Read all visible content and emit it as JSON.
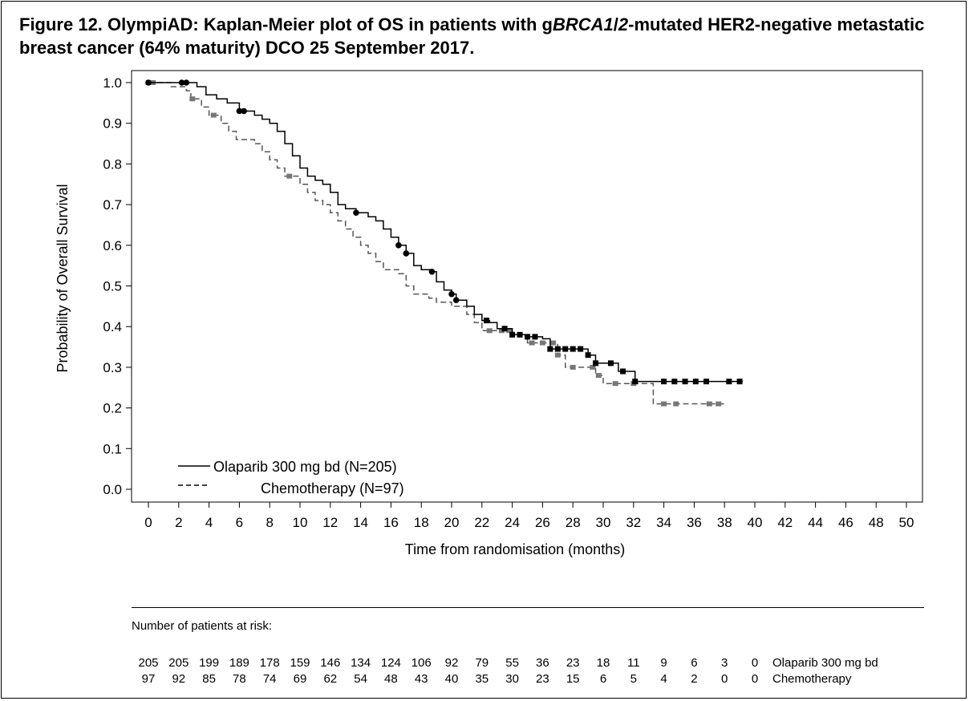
{
  "figure": {
    "title_part1": "Figure 12. OlympiAD: Kaplan-Meier plot of OS in patients with g",
    "title_italic": "BRCA1",
    "title_part2": "/",
    "title_italic2": "2",
    "title_part3": "-mutated HER2-negative metastatic breast cancer (64% maturity) DCO 25 September 2017."
  },
  "chart_data": {
    "type": "line",
    "title": "",
    "xlabel": "Time from randomisation (months)",
    "ylabel": "Probability of Overall Survival",
    "xlim": [
      0,
      50
    ],
    "ylim": [
      0,
      1
    ],
    "x_ticks": [
      0,
      2,
      4,
      6,
      8,
      10,
      12,
      14,
      16,
      18,
      20,
      22,
      24,
      26,
      28,
      30,
      32,
      34,
      36,
      38,
      40,
      42,
      44,
      46,
      48,
      50
    ],
    "y_ticks": [
      "0.0",
      "0.1",
      "0.2",
      "0.3",
      "0.4",
      "0.5",
      "0.6",
      "0.7",
      "0.8",
      "0.9",
      "1.0"
    ],
    "grid": false,
    "legend_position": "bottom-left",
    "series": [
      {
        "name": "Olaparib 300 mg bd (N=205)",
        "style": "solid",
        "color": "#000000",
        "points": [
          [
            0,
            1.0
          ],
          [
            2.5,
            1.0
          ],
          [
            3.2,
            0.99
          ],
          [
            3.8,
            0.97
          ],
          [
            4.5,
            0.96
          ],
          [
            5.2,
            0.95
          ],
          [
            6.0,
            0.93
          ],
          [
            6.5,
            0.93
          ],
          [
            7.0,
            0.92
          ],
          [
            7.5,
            0.91
          ],
          [
            8.0,
            0.9
          ],
          [
            8.5,
            0.88
          ],
          [
            9.0,
            0.85
          ],
          [
            9.5,
            0.82
          ],
          [
            10.0,
            0.79
          ],
          [
            10.5,
            0.77
          ],
          [
            11.0,
            0.76
          ],
          [
            11.5,
            0.75
          ],
          [
            12.0,
            0.73
          ],
          [
            12.5,
            0.7
          ],
          [
            13.0,
            0.69
          ],
          [
            13.7,
            0.68
          ],
          [
            14.0,
            0.68
          ],
          [
            14.5,
            0.67
          ],
          [
            15.0,
            0.66
          ],
          [
            15.5,
            0.64
          ],
          [
            16.0,
            0.62
          ],
          [
            16.5,
            0.6
          ],
          [
            17.0,
            0.58
          ],
          [
            17.5,
            0.55
          ],
          [
            18.0,
            0.54
          ],
          [
            18.7,
            0.535
          ],
          [
            19.0,
            0.51
          ],
          [
            19.5,
            0.49
          ],
          [
            20.0,
            0.48
          ],
          [
            20.3,
            0.465
          ],
          [
            21.0,
            0.45
          ],
          [
            21.5,
            0.43
          ],
          [
            22.0,
            0.415
          ],
          [
            22.5,
            0.41
          ],
          [
            23.0,
            0.395
          ],
          [
            24.0,
            0.38
          ],
          [
            25.0,
            0.375
          ],
          [
            26.0,
            0.37
          ],
          [
            26.5,
            0.345
          ],
          [
            28.5,
            0.345
          ],
          [
            29.0,
            0.33
          ],
          [
            29.5,
            0.31
          ],
          [
            30.5,
            0.31
          ],
          [
            31.0,
            0.29
          ],
          [
            32.0,
            0.29
          ],
          [
            32.1,
            0.265
          ],
          [
            39.2,
            0.265
          ]
        ],
        "censored_x": [
          0,
          2.2,
          2.5,
          6.0,
          6.3,
          13.7,
          16.5,
          17.0,
          18.7,
          20.0,
          20.3,
          22.3,
          23.5,
          24.0,
          24.5,
          25.0,
          25.5,
          26.5,
          27.0,
          27.5,
          28.0,
          28.5,
          29.0,
          29.5,
          30.5,
          31.3,
          32.1,
          34.0,
          34.7,
          35.4,
          36.1,
          36.8,
          38.3,
          39.0
        ]
      },
      {
        "name": "Chemotherapy (N=97)",
        "style": "dashed",
        "color": "#555555",
        "points": [
          [
            0,
            1.0
          ],
          [
            1.5,
            0.99
          ],
          [
            2.5,
            0.98
          ],
          [
            2.8,
            0.96
          ],
          [
            3.5,
            0.94
          ],
          [
            4.0,
            0.92
          ],
          [
            4.8,
            0.9
          ],
          [
            5.3,
            0.88
          ],
          [
            5.8,
            0.86
          ],
          [
            7.0,
            0.85
          ],
          [
            7.5,
            0.83
          ],
          [
            8.0,
            0.81
          ],
          [
            8.5,
            0.79
          ],
          [
            9.0,
            0.77
          ],
          [
            10.0,
            0.75
          ],
          [
            10.5,
            0.73
          ],
          [
            11.0,
            0.71
          ],
          [
            11.5,
            0.7
          ],
          [
            12.0,
            0.68
          ],
          [
            12.5,
            0.66
          ],
          [
            13.0,
            0.64
          ],
          [
            13.5,
            0.62
          ],
          [
            14.0,
            0.6
          ],
          [
            14.5,
            0.58
          ],
          [
            15.0,
            0.56
          ],
          [
            15.5,
            0.54
          ],
          [
            16.5,
            0.53
          ],
          [
            17.0,
            0.5
          ],
          [
            17.5,
            0.48
          ],
          [
            18.5,
            0.47
          ],
          [
            19.0,
            0.46
          ],
          [
            20.0,
            0.45
          ],
          [
            21.0,
            0.43
          ],
          [
            21.5,
            0.41
          ],
          [
            22.0,
            0.39
          ],
          [
            24.0,
            0.38
          ],
          [
            25.0,
            0.36
          ],
          [
            27.0,
            0.33
          ],
          [
            27.5,
            0.3
          ],
          [
            29.0,
            0.3
          ],
          [
            29.5,
            0.28
          ],
          [
            30.0,
            0.26
          ],
          [
            32.0,
            0.26
          ],
          [
            33.3,
            0.26
          ],
          [
            33.3,
            0.21
          ],
          [
            38.0,
            0.21
          ]
        ],
        "censored_x": [
          0,
          0.3,
          2.9,
          4.3,
          9.3,
          22.5,
          23.3,
          23.8,
          25.3,
          26.0,
          26.7,
          27.0,
          28.0,
          29.3,
          29.7,
          30.8,
          32.0,
          34.0,
          34.8,
          37.0,
          37.6
        ]
      }
    ],
    "risk_table": {
      "title": "Number of patients at risk:",
      "times": [
        0,
        2,
        4,
        6,
        8,
        10,
        12,
        14,
        16,
        18,
        20,
        22,
        24,
        26,
        28,
        30,
        32,
        34,
        36,
        38,
        40
      ],
      "rows": [
        {
          "label": "Olaparib 300 mg bd",
          "values": [
            "205",
            "205",
            "199",
            "189",
            "178",
            "159",
            "146",
            "134",
            "124",
            "106",
            "92",
            "79",
            "55",
            "36",
            "23",
            "18",
            "11",
            "9",
            "6",
            "3",
            "0"
          ]
        },
        {
          "label": "Chemotherapy",
          "values": [
            "97",
            "92",
            "85",
            "78",
            "74",
            "69",
            "62",
            "54",
            "48",
            "43",
            "40",
            "35",
            "30",
            "23",
            "15",
            "6",
            "5",
            "4",
            "2",
            "0",
            "0"
          ]
        }
      ]
    }
  }
}
